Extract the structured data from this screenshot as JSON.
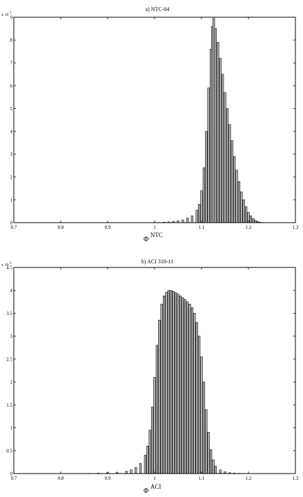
{
  "chart_data": [
    {
      "type": "bar",
      "title": "a) NTC-04",
      "xlabel": "Φ",
      "xlabel_superscript": "NTC",
      "y_multiplier_base": "x 10",
      "y_multiplier_exp": "5",
      "xlim": [
        0.7,
        1.3
      ],
      "ylim": [
        0,
        9
      ],
      "xticks": [
        "0.7",
        "0.8",
        "0.9",
        "1",
        "1.1",
        "1.2",
        "1.3"
      ],
      "yticks": [
        "0",
        "1",
        "2",
        "3",
        "4",
        "5",
        "6",
        "7",
        "8",
        "9"
      ],
      "bar_width": 0.004,
      "grid": false,
      "x": [
        1.0,
        1.01,
        1.02,
        1.03,
        1.04,
        1.05,
        1.06,
        1.07,
        1.08,
        1.09,
        1.095,
        1.1,
        1.105,
        1.11,
        1.115,
        1.12,
        1.123,
        1.126,
        1.13,
        1.135,
        1.14,
        1.145,
        1.15,
        1.155,
        1.16,
        1.165,
        1.17,
        1.175,
        1.18,
        1.185,
        1.19,
        1.195,
        1.2,
        1.205,
        1.21,
        1.215,
        1.22,
        1.225,
        1.23
      ],
      "values": [
        0.01,
        0.01,
        0.02,
        0.03,
        0.05,
        0.08,
        0.12,
        0.2,
        0.3,
        0.55,
        0.8,
        1.4,
        2.4,
        4.0,
        5.9,
        7.6,
        8.6,
        8.95,
        8.5,
        7.9,
        7.2,
        6.5,
        5.7,
        5.0,
        4.3,
        3.6,
        2.9,
        2.3,
        1.8,
        1.35,
        1.0,
        0.7,
        0.45,
        0.3,
        0.18,
        0.1,
        0.05,
        0.02,
        0.01
      ]
    },
    {
      "type": "bar",
      "title": "b) ACI 318-11",
      "xlabel": "Φ",
      "xlabel_superscript": "ACI",
      "y_multiplier_base": "x 10",
      "y_multiplier_exp": "5",
      "xlim": [
        0.7,
        1.3
      ],
      "ylim": [
        0,
        4.5
      ],
      "xticks": [
        "0.7",
        "0.8",
        "0.9",
        "1",
        "1.1",
        "1.2",
        "1.3"
      ],
      "yticks": [
        "0",
        "0.5",
        "1",
        "1.5",
        "2",
        "2.5",
        "3",
        "3.5",
        "4",
        "4.5"
      ],
      "bar_width": 0.004,
      "grid": false,
      "x": [
        0.86,
        0.88,
        0.9,
        0.92,
        0.94,
        0.95,
        0.96,
        0.97,
        0.98,
        0.985,
        0.99,
        0.995,
        1.0,
        1.005,
        1.01,
        1.015,
        1.02,
        1.025,
        1.03,
        1.035,
        1.04,
        1.045,
        1.05,
        1.055,
        1.06,
        1.065,
        1.07,
        1.075,
        1.08,
        1.085,
        1.09,
        1.095,
        1.1,
        1.105,
        1.11,
        1.115,
        1.12,
        1.125,
        1.13,
        1.14,
        1.15,
        1.16,
        1.17,
        1.18
      ],
      "values": [
        0.005,
        0.01,
        0.02,
        0.03,
        0.05,
        0.08,
        0.13,
        0.22,
        0.4,
        0.6,
        0.95,
        1.45,
        2.1,
        2.8,
        3.35,
        3.7,
        3.88,
        3.96,
        4.0,
        4.0,
        3.98,
        3.95,
        3.92,
        3.88,
        3.84,
        3.8,
        3.75,
        3.7,
        3.62,
        3.5,
        3.3,
        3.0,
        2.55,
        2.0,
        1.4,
        0.9,
        0.52,
        0.3,
        0.16,
        0.08,
        0.04,
        0.02,
        0.01,
        0.005
      ]
    }
  ]
}
